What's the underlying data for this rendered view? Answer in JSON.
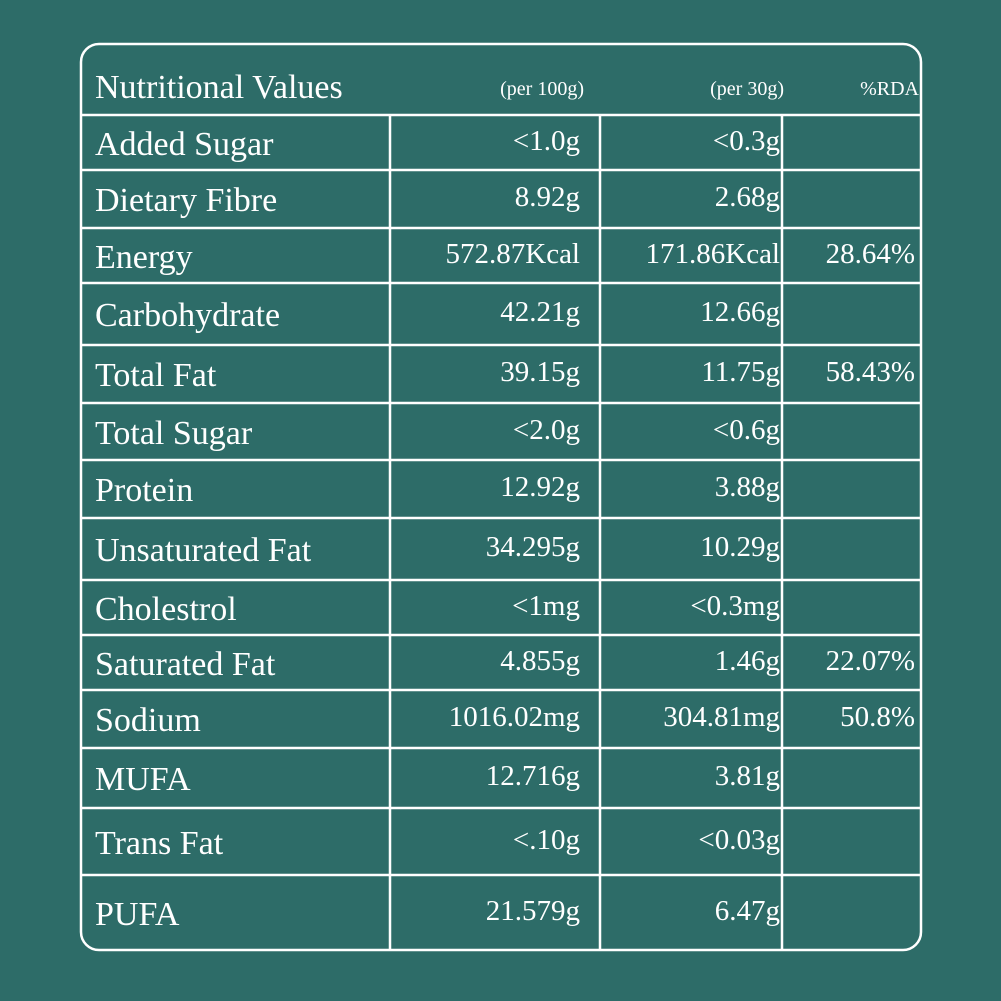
{
  "header": {
    "title": "Nutritional Values",
    "columns": [
      "(per 100g)",
      "(per 30g)",
      "%RDA"
    ]
  },
  "table": {
    "rows": [
      [
        "Added Sugar",
        "<1.0g",
        "<0.3g"
      ],
      [
        "Dietary Fibre",
        "8.92g",
        "2.68g"
      ],
      [
        "Energy",
        "572.87Kcal",
        "171.86Kcal",
        "28.64%"
      ],
      [
        "Carbohydrate",
        "42.21g",
        "12.66g"
      ],
      [
        "Total Fat",
        "39.15g",
        "11.75g",
        "58.43%"
      ],
      [
        "Total Sugar",
        "<2.0g",
        "<0.6g"
      ],
      [
        "Protein",
        "12.92g",
        "3.88g"
      ],
      [
        "Unsaturated Fat",
        "34.295g",
        "10.29g"
      ],
      [
        "Cholestrol",
        "<1mg",
        "<0.3mg"
      ],
      [
        "Saturated Fat",
        "4.855g",
        "1.46g",
        "22.07%"
      ],
      [
        "Sodium",
        "1016.02mg",
        "304.81mg",
        "50.8%"
      ],
      [
        "MUFA",
        "12.716g",
        "3.81g"
      ],
      [
        "Trans Fat",
        "<.10g",
        "<0.03g"
      ],
      [
        "PUFA",
        "21.579g",
        "6.47g"
      ]
    ]
  }
}
